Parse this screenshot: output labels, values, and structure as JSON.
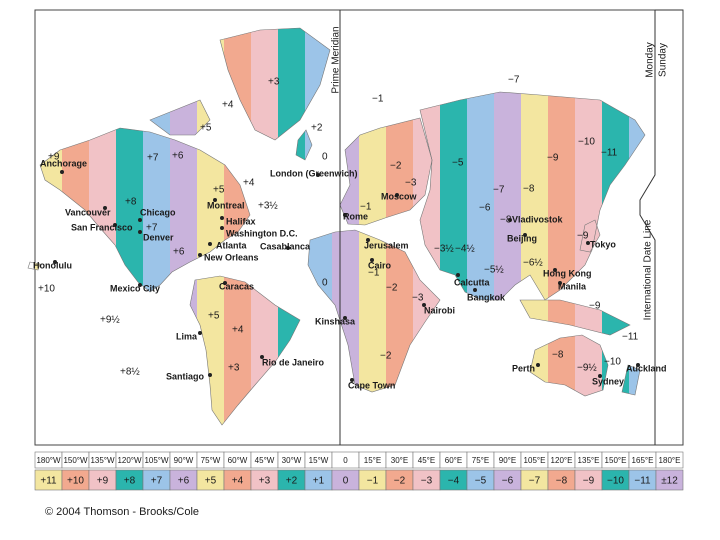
{
  "map": {
    "prime_meridian": "Prime Meridian",
    "date_line": "International Date Line",
    "day_east": "Monday",
    "day_west": "Sunday",
    "cities": [
      "Anchorage",
      "Vancouver",
      "San Francisco",
      "Chicago",
      "Denver",
      "Montreal",
      "Halifax",
      "Washington D.C.",
      "Atlanta",
      "New Orleans",
      "Honolulu",
      "Mexico City",
      "Caracas",
      "Lima",
      "Santiago",
      "Rio de Janeiro",
      "London (Greenwich)",
      "Rome",
      "Moscow",
      "Casablanca",
      "Jerusalem",
      "Cairo",
      "Kinshasa",
      "Nairobi",
      "Cape Town",
      "Calcutta",
      "Bangkok",
      "Beijing",
      "Vladivostok",
      "Tokyo",
      "Hong Kong",
      "Manila",
      "Perth",
      "Sydney",
      "Auckland"
    ],
    "zone_labels": [
      "+3",
      "+4",
      "+5",
      "+2",
      "0",
      "−1",
      "+9",
      "+7",
      "+6",
      "+8",
      "+5",
      "+4",
      "+3½",
      "+7",
      "+6",
      "+10",
      "+9½",
      "+8½",
      "+5",
      "+4",
      "+3",
      "0",
      "−1",
      "−2",
      "−3",
      "−1",
      "−2",
      "−3",
      "−2",
      "−3½",
      "−4½",
      "−5",
      "−6",
      "−7",
      "−8",
      "−9",
      "−10",
      "−11",
      "−7",
      "−5½",
      "−6½",
      "−9",
      "−9",
      "−8",
      "−9½",
      "−10",
      "−11",
      "−8"
    ],
    "longitudes": [
      "180°W",
      "150°W",
      "135°W",
      "120°W",
      "105°W",
      "90°W",
      "75°W",
      "60°W",
      "45°W",
      "30°W",
      "15°W",
      "0",
      "15°E",
      "30°E",
      "45°E",
      "60°E",
      "75°E",
      "90°E",
      "105°E",
      "120°E",
      "135°E",
      "150°E",
      "165°E",
      "180°E"
    ],
    "offsets": [
      "+11",
      "+10",
      "+9",
      "+8",
      "+7",
      "+6",
      "+5",
      "+4",
      "+3",
      "+2",
      "+1",
      "0",
      "−1",
      "−2",
      "−3",
      "−4",
      "−5",
      "−6",
      "−7",
      "−8",
      "−9",
      "−10",
      "−11",
      "±12"
    ],
    "copyright": "© 2004 Thomson - Brooks/Cole"
  }
}
